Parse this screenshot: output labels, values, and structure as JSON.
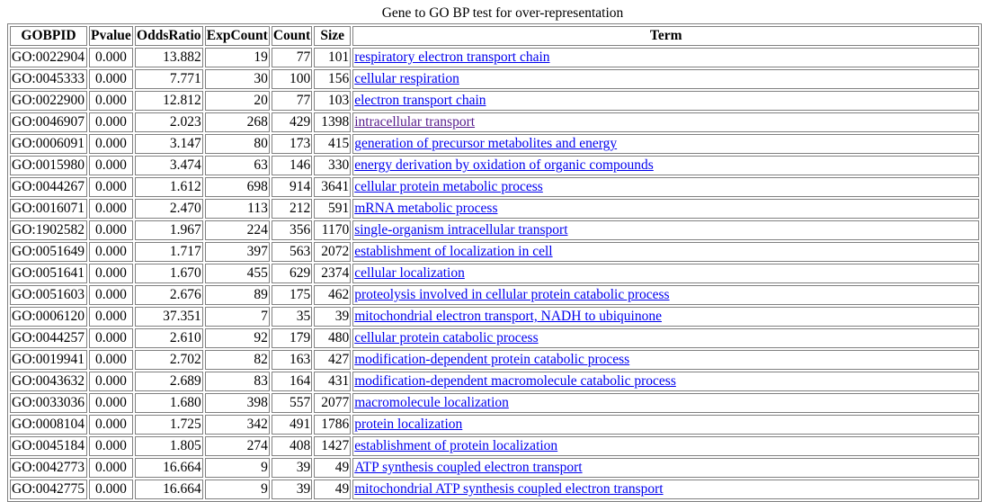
{
  "caption": "Gene to GO BP test for over-representation",
  "columns": [
    "GOBPID",
    "Pvalue",
    "OddsRatio",
    "ExpCount",
    "Count",
    "Size",
    "Term"
  ],
  "link_colors": {
    "unvisited": "#0000ee",
    "visited": "#551a8b"
  },
  "rows": [
    {
      "id": "GO:0022904",
      "p": "0.000",
      "or": "13.882",
      "exp": "19",
      "count": "77",
      "size": "101",
      "term": "respiratory electron transport chain",
      "visited": false
    },
    {
      "id": "GO:0045333",
      "p": "0.000",
      "or": "7.771",
      "exp": "30",
      "count": "100",
      "size": "156",
      "term": "cellular respiration",
      "visited": false
    },
    {
      "id": "GO:0022900",
      "p": "0.000",
      "or": "12.812",
      "exp": "20",
      "count": "77",
      "size": "103",
      "term": "electron transport chain",
      "visited": false
    },
    {
      "id": "GO:0046907",
      "p": "0.000",
      "or": "2.023",
      "exp": "268",
      "count": "429",
      "size": "1398",
      "term": "intracellular transport",
      "visited": true
    },
    {
      "id": "GO:0006091",
      "p": "0.000",
      "or": "3.147",
      "exp": "80",
      "count": "173",
      "size": "415",
      "term": "generation of precursor metabolites and energy",
      "visited": false
    },
    {
      "id": "GO:0015980",
      "p": "0.000",
      "or": "3.474",
      "exp": "63",
      "count": "146",
      "size": "330",
      "term": "energy derivation by oxidation of organic compounds",
      "visited": false
    },
    {
      "id": "GO:0044267",
      "p": "0.000",
      "or": "1.612",
      "exp": "698",
      "count": "914",
      "size": "3641",
      "term": "cellular protein metabolic process",
      "visited": false
    },
    {
      "id": "GO:0016071",
      "p": "0.000",
      "or": "2.470",
      "exp": "113",
      "count": "212",
      "size": "591",
      "term": "mRNA metabolic process",
      "visited": false
    },
    {
      "id": "GO:1902582",
      "p": "0.000",
      "or": "1.967",
      "exp": "224",
      "count": "356",
      "size": "1170",
      "term": "single-organism intracellular transport",
      "visited": false
    },
    {
      "id": "GO:0051649",
      "p": "0.000",
      "or": "1.717",
      "exp": "397",
      "count": "563",
      "size": "2072",
      "term": "establishment of localization in cell",
      "visited": false
    },
    {
      "id": "GO:0051641",
      "p": "0.000",
      "or": "1.670",
      "exp": "455",
      "count": "629",
      "size": "2374",
      "term": "cellular localization",
      "visited": false
    },
    {
      "id": "GO:0051603",
      "p": "0.000",
      "or": "2.676",
      "exp": "89",
      "count": "175",
      "size": "462",
      "term": "proteolysis involved in cellular protein catabolic process",
      "visited": false
    },
    {
      "id": "GO:0006120",
      "p": "0.000",
      "or": "37.351",
      "exp": "7",
      "count": "35",
      "size": "39",
      "term": "mitochondrial electron transport, NADH to ubiquinone",
      "visited": false
    },
    {
      "id": "GO:0044257",
      "p": "0.000",
      "or": "2.610",
      "exp": "92",
      "count": "179",
      "size": "480",
      "term": "cellular protein catabolic process",
      "visited": false
    },
    {
      "id": "GO:0019941",
      "p": "0.000",
      "or": "2.702",
      "exp": "82",
      "count": "163",
      "size": "427",
      "term": "modification-dependent protein catabolic process",
      "visited": false
    },
    {
      "id": "GO:0043632",
      "p": "0.000",
      "or": "2.689",
      "exp": "83",
      "count": "164",
      "size": "431",
      "term": "modification-dependent macromolecule catabolic process",
      "visited": false
    },
    {
      "id": "GO:0033036",
      "p": "0.000",
      "or": "1.680",
      "exp": "398",
      "count": "557",
      "size": "2077",
      "term": "macromolecule localization",
      "visited": false
    },
    {
      "id": "GO:0008104",
      "p": "0.000",
      "or": "1.725",
      "exp": "342",
      "count": "491",
      "size": "1786",
      "term": "protein localization",
      "visited": false
    },
    {
      "id": "GO:0045184",
      "p": "0.000",
      "or": "1.805",
      "exp": "274",
      "count": "408",
      "size": "1427",
      "term": "establishment of protein localization",
      "visited": false
    },
    {
      "id": "GO:0042773",
      "p": "0.000",
      "or": "16.664",
      "exp": "9",
      "count": "39",
      "size": "49",
      "term": "ATP synthesis coupled electron transport",
      "visited": false
    },
    {
      "id": "GO:0042775",
      "p": "0.000",
      "or": "16.664",
      "exp": "9",
      "count": "39",
      "size": "49",
      "term": "mitochondrial ATP synthesis coupled electron transport",
      "visited": false
    }
  ]
}
